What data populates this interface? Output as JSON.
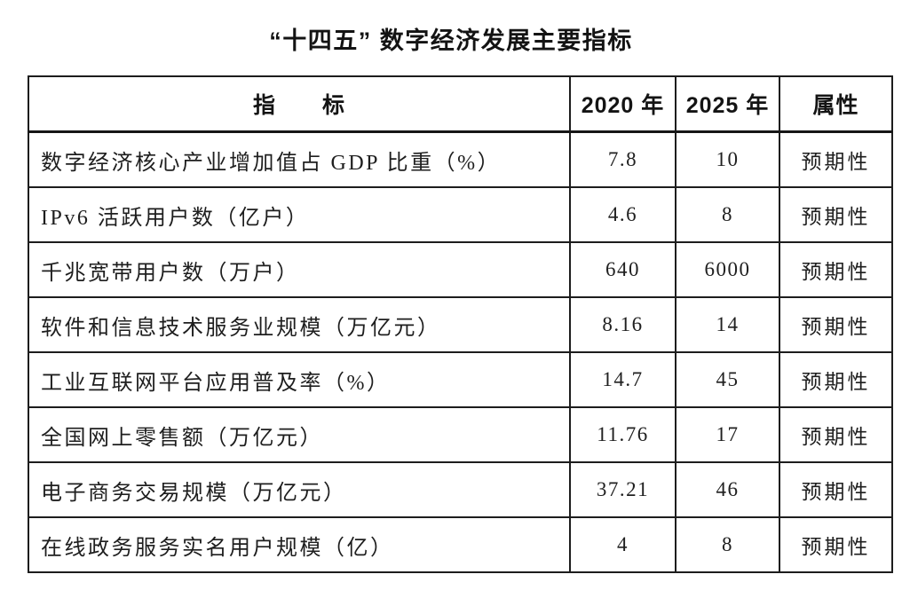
{
  "title": "“十四五” 数字经济发展主要指标",
  "colors": {
    "background": "#ffffff",
    "border": "#1d1d1d",
    "text": "#1c1c1c"
  },
  "table": {
    "headers": [
      "指　　标",
      "2020 年",
      "2025 年",
      "属性"
    ],
    "rows": [
      {
        "indicator": "数字经济核心产业增加值占 GDP 比重（%）",
        "y2020": "7.8",
        "y2025": "10",
        "attr": "预期性"
      },
      {
        "indicator": "IPv6 活跃用户数（亿户）",
        "y2020": "4.6",
        "y2025": "8",
        "attr": "预期性"
      },
      {
        "indicator": "千兆宽带用户数（万户）",
        "y2020": "640",
        "y2025": "6000",
        "attr": "预期性"
      },
      {
        "indicator": "软件和信息技术服务业规模（万亿元）",
        "y2020": "8.16",
        "y2025": "14",
        "attr": "预期性"
      },
      {
        "indicator": "工业互联网平台应用普及率（%）",
        "y2020": "14.7",
        "y2025": "45",
        "attr": "预期性"
      },
      {
        "indicator": "全国网上零售额（万亿元）",
        "y2020": "11.76",
        "y2025": "17",
        "attr": "预期性"
      },
      {
        "indicator": "电子商务交易规模（万亿元）",
        "y2020": "37.21",
        "y2025": "46",
        "attr": "预期性"
      },
      {
        "indicator": "在线政务服务实名用户规模（亿）",
        "y2020": "4",
        "y2025": "8",
        "attr": "预期性"
      }
    ]
  }
}
